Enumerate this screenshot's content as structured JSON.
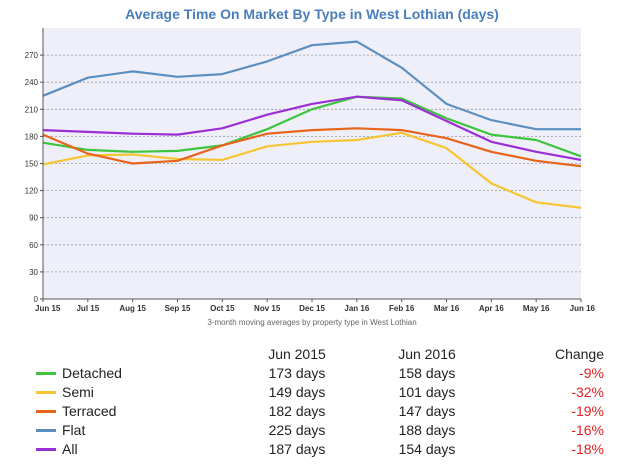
{
  "chart_data": {
    "type": "line",
    "title": "Average Time On Market By Type in West Lothian (days)",
    "subtitle": "3-month moving averages by property type in West Lothian",
    "x": [
      "Jun 15",
      "Jul 15",
      "Aug 15",
      "Sep 15",
      "Oct 15",
      "Nov 15",
      "Dec 15",
      "Jan 16",
      "Feb 16",
      "Mar 16",
      "Apr 16",
      "May 16",
      "Jun 16"
    ],
    "ylim": [
      0,
      300
    ],
    "yticks": [
      0,
      30,
      60,
      90,
      120,
      150,
      180,
      210,
      240,
      270
    ],
    "grid": "horizontal dotted",
    "series": [
      {
        "name": "Detached",
        "color": "#3ec43e",
        "values": [
          173,
          165,
          163,
          164,
          170,
          188,
          210,
          224,
          222,
          200,
          182,
          176,
          158
        ]
      },
      {
        "name": "Semi",
        "color": "#f5c533",
        "values": [
          149,
          159,
          160,
          155,
          154,
          169,
          174,
          176,
          184,
          167,
          128,
          107,
          101
        ]
      },
      {
        "name": "Terraced",
        "color": "#e8641b",
        "values": [
          182,
          161,
          150,
          153,
          170,
          183,
          187,
          189,
          187,
          178,
          163,
          153,
          147
        ]
      },
      {
        "name": "Flat",
        "color": "#5c8fbf",
        "values": [
          225,
          245,
          252,
          246,
          249,
          263,
          281,
          285,
          256,
          216,
          198,
          188,
          188
        ]
      },
      {
        "name": "All",
        "color": "#9b2fd4",
        "values": [
          187,
          185,
          183,
          182,
          189,
          204,
          216,
          224,
          220,
          197,
          174,
          163,
          154
        ]
      }
    ]
  },
  "summary": {
    "headers": {
      "a": "Jun 2015",
      "b": "Jun 2016",
      "c": "Change"
    },
    "rows": [
      {
        "name": "Detached",
        "color": "#3ec43e",
        "a": "173 days",
        "b": "158 days",
        "c": "-9%"
      },
      {
        "name": "Semi",
        "color": "#f5c533",
        "a": "149 days",
        "b": "101 days",
        "c": "-32%"
      },
      {
        "name": "Terraced",
        "color": "#e8641b",
        "a": "182 days",
        "b": "147 days",
        "c": "-19%"
      },
      {
        "name": "Flat",
        "color": "#5c8fbf",
        "a": "225 days",
        "b": "188 days",
        "c": "-16%"
      },
      {
        "name": "All",
        "color": "#9b2fd4",
        "a": "187 days",
        "b": "154 days",
        "c": "-18%"
      }
    ]
  }
}
